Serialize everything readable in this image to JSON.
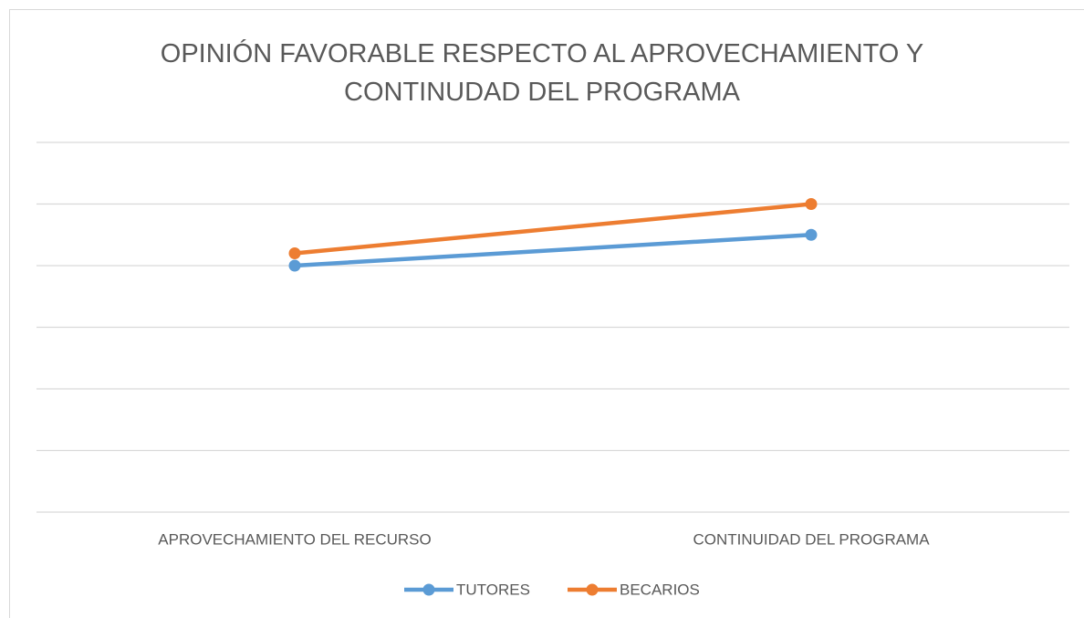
{
  "chart_data": {
    "type": "line",
    "title": "OPINIÓN FAVORABLE RESPECTO AL APROVECHAMIENTO Y CONTINUDAD DEL PROGRAMA",
    "categories": [
      "APROVECHAMIENTO DEL RECURSO",
      "CONTINUIDAD DEL PROGRAMA"
    ],
    "series": [
      {
        "name": "TUTORES",
        "color": "#5b9bd5",
        "values": [
          80,
          90
        ]
      },
      {
        "name": "BECARIOS",
        "color": "#ed7d31",
        "values": [
          84,
          100
        ]
      }
    ],
    "ylim": [
      0,
      120
    ],
    "yticks": [
      0,
      20,
      40,
      60,
      80,
      100,
      120
    ],
    "grid": true,
    "legend": "bottom"
  }
}
